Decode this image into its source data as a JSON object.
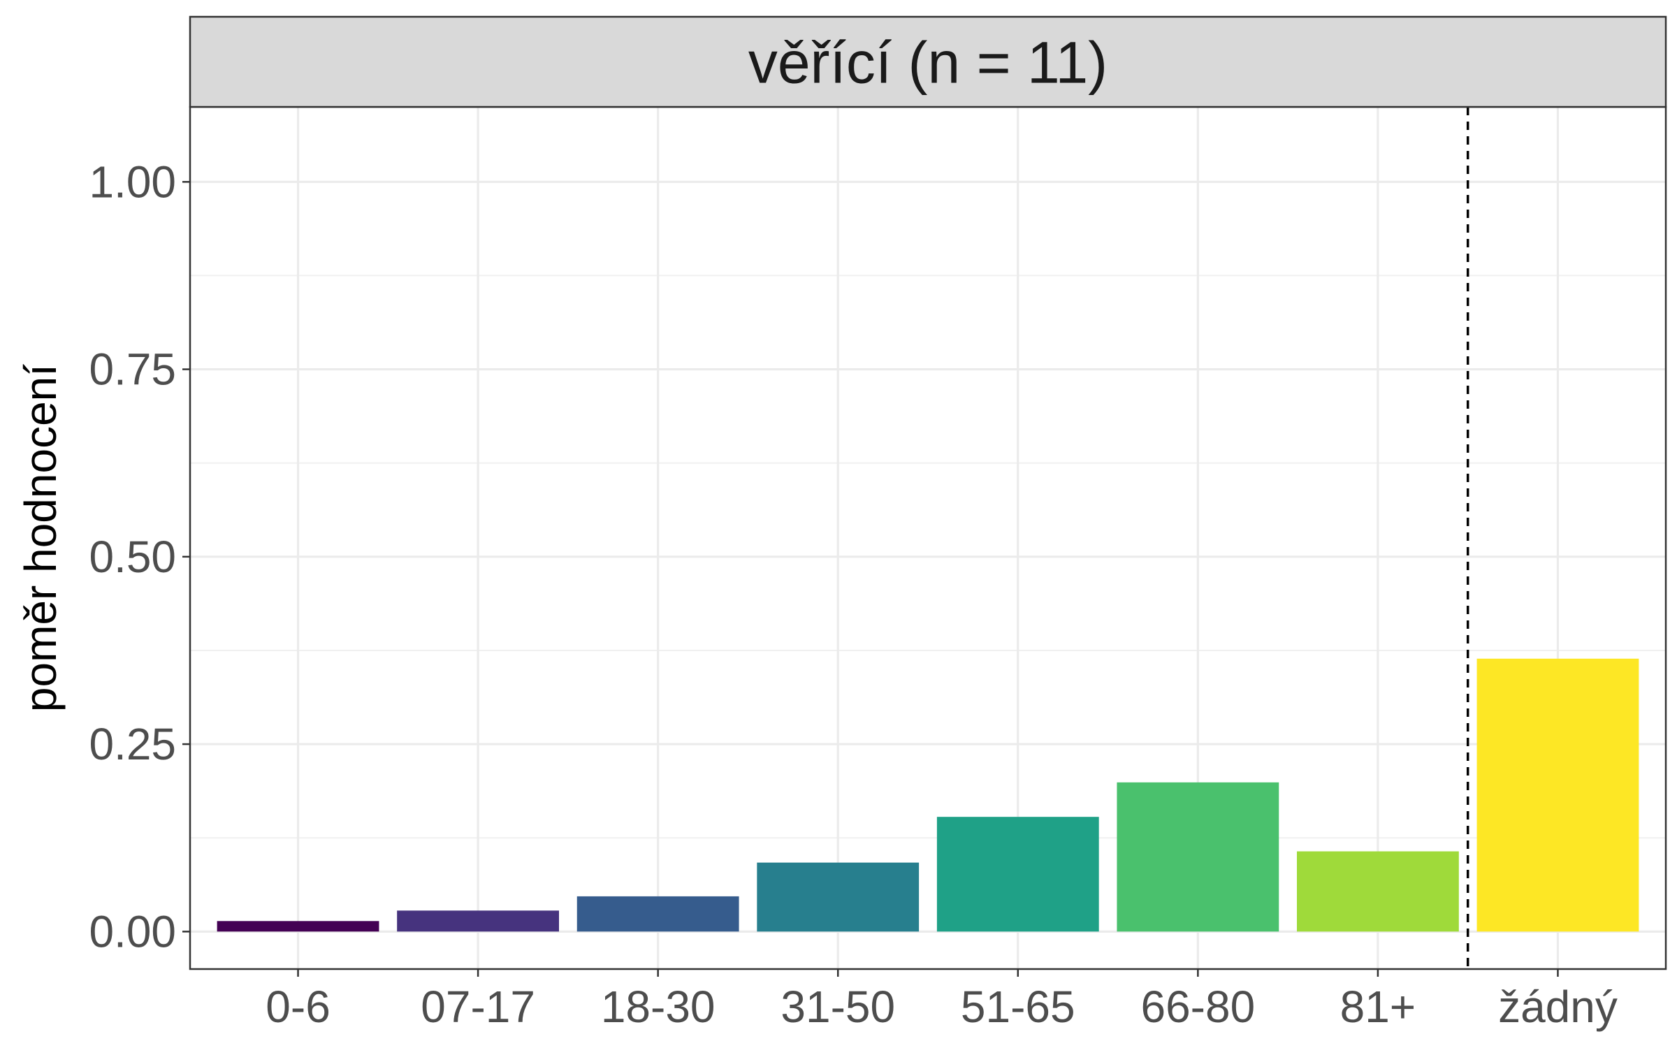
{
  "chart_data": {
    "type": "bar",
    "facet_title": "věřící (n = 11)",
    "xlabel": "",
    "ylabel": "poměr hodnocení",
    "categories": [
      "0-6",
      "07-17",
      "18-30",
      "31-50",
      "51-65",
      "66-80",
      "81+",
      "žádný"
    ],
    "values": [
      0.014,
      0.028,
      0.047,
      0.092,
      0.153,
      0.199,
      0.107,
      0.364
    ],
    "colors": [
      "#440154",
      "#46337E",
      "#365C8D",
      "#277F8E",
      "#1FA187",
      "#4AC16D",
      "#9FDA3A",
      "#FDE725"
    ],
    "ylim": [
      -0.05,
      1.1
    ],
    "yticks": [
      0.0,
      0.25,
      0.5,
      0.75,
      1.0
    ],
    "ytick_labels": [
      "0.00",
      "0.25",
      "0.50",
      "0.75",
      "1.00"
    ],
    "reference_line": {
      "between": [
        "81+",
        "žádný"
      ],
      "style": "dashed"
    },
    "grid": true,
    "theme": "bw"
  }
}
